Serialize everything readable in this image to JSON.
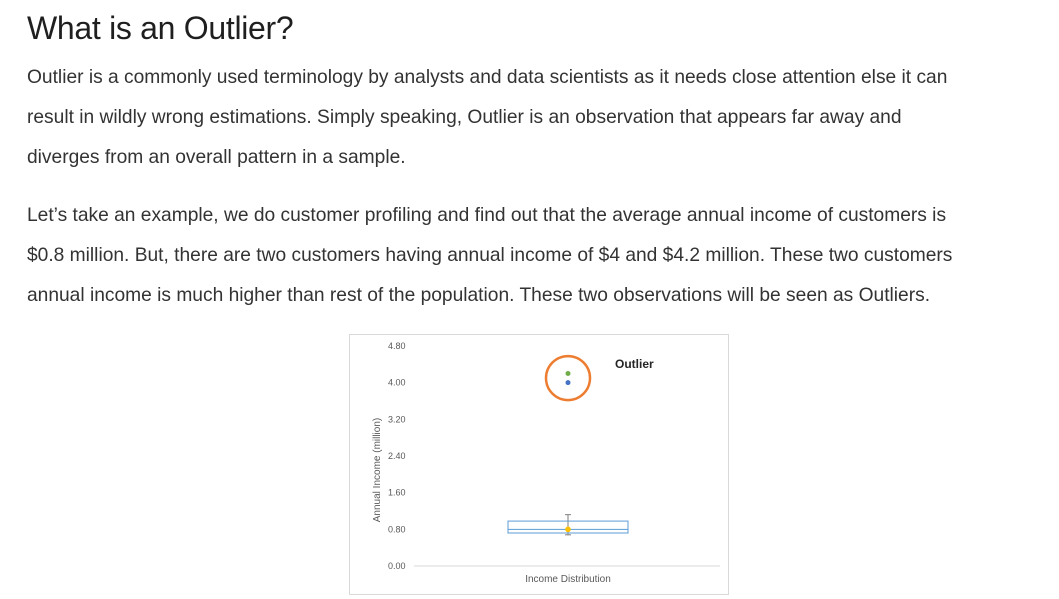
{
  "article": {
    "title": "What is an Outlier?",
    "paragraph1": [
      "Outlier is a commonly used terminology by analysts and data scientists as it needs close attention else it can",
      "result in wildly wrong estimations. Simply speaking, Outlier is an observation that appears far away and",
      "diverges from an overall pattern in a sample."
    ],
    "paragraph2": [
      "Let’s take an example, we do customer profiling and find out that the average annual income of customers is",
      "$0.8 million. But, there are two customers having annual income of $4 and $4.2 million. These two customers",
      "annual income is much higher than rest of the population. These two observations will be seen as Outliers."
    ]
  },
  "chart_data": {
    "type": "box",
    "title": "",
    "xlabel": "Income Distribution",
    "ylabel": "Annual Income (million)",
    "ylim": [
      0,
      4.8
    ],
    "yticks": [
      "0.00",
      "0.80",
      "1.60",
      "2.40",
      "3.20",
      "4.00",
      "4.80"
    ],
    "grid": false,
    "box": {
      "min": 0.68,
      "q1": 0.72,
      "median": 0.8,
      "q3": 0.98,
      "max": 1.12,
      "mean": 0.8
    },
    "outliers": [
      4.0,
      4.2
    ],
    "annotation": "Outlier",
    "colors": {
      "box": "#5b9bd5",
      "mean": "#ffc000",
      "outlier_low": "#4472c4",
      "outlier_high": "#70ad47",
      "circle": "#ed7d31",
      "whisker": "#7f7f7f"
    }
  }
}
